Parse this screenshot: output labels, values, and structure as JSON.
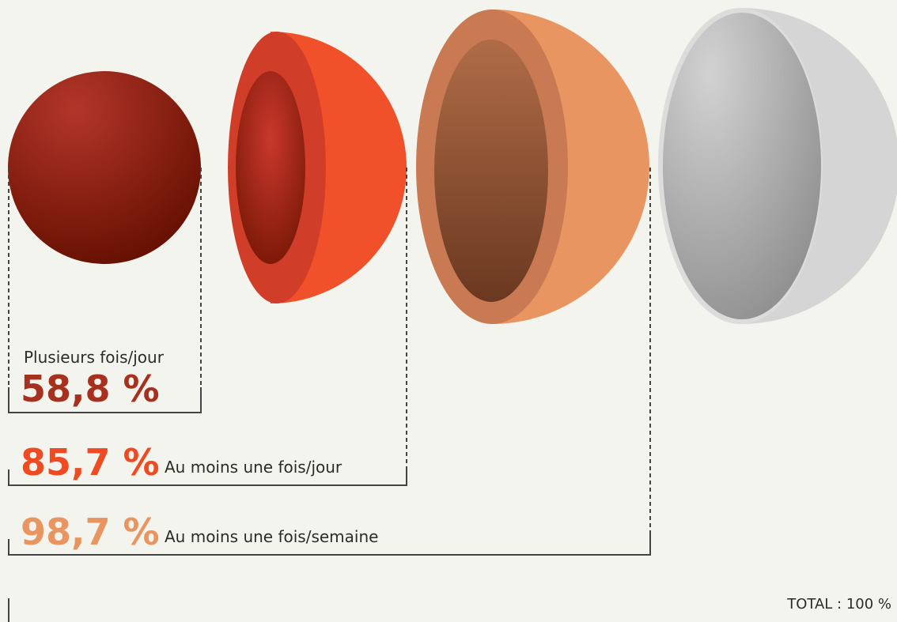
{
  "items": [
    {
      "label": "Plusieurs fois/jour",
      "value": "58,8 %"
    },
    {
      "label": "Au moins une fois/jour",
      "value": "85,7 %"
    },
    {
      "label": "Au moins une fois/semaine",
      "value": "98,7 %"
    }
  ],
  "total": "TOTAL : 100 %"
}
